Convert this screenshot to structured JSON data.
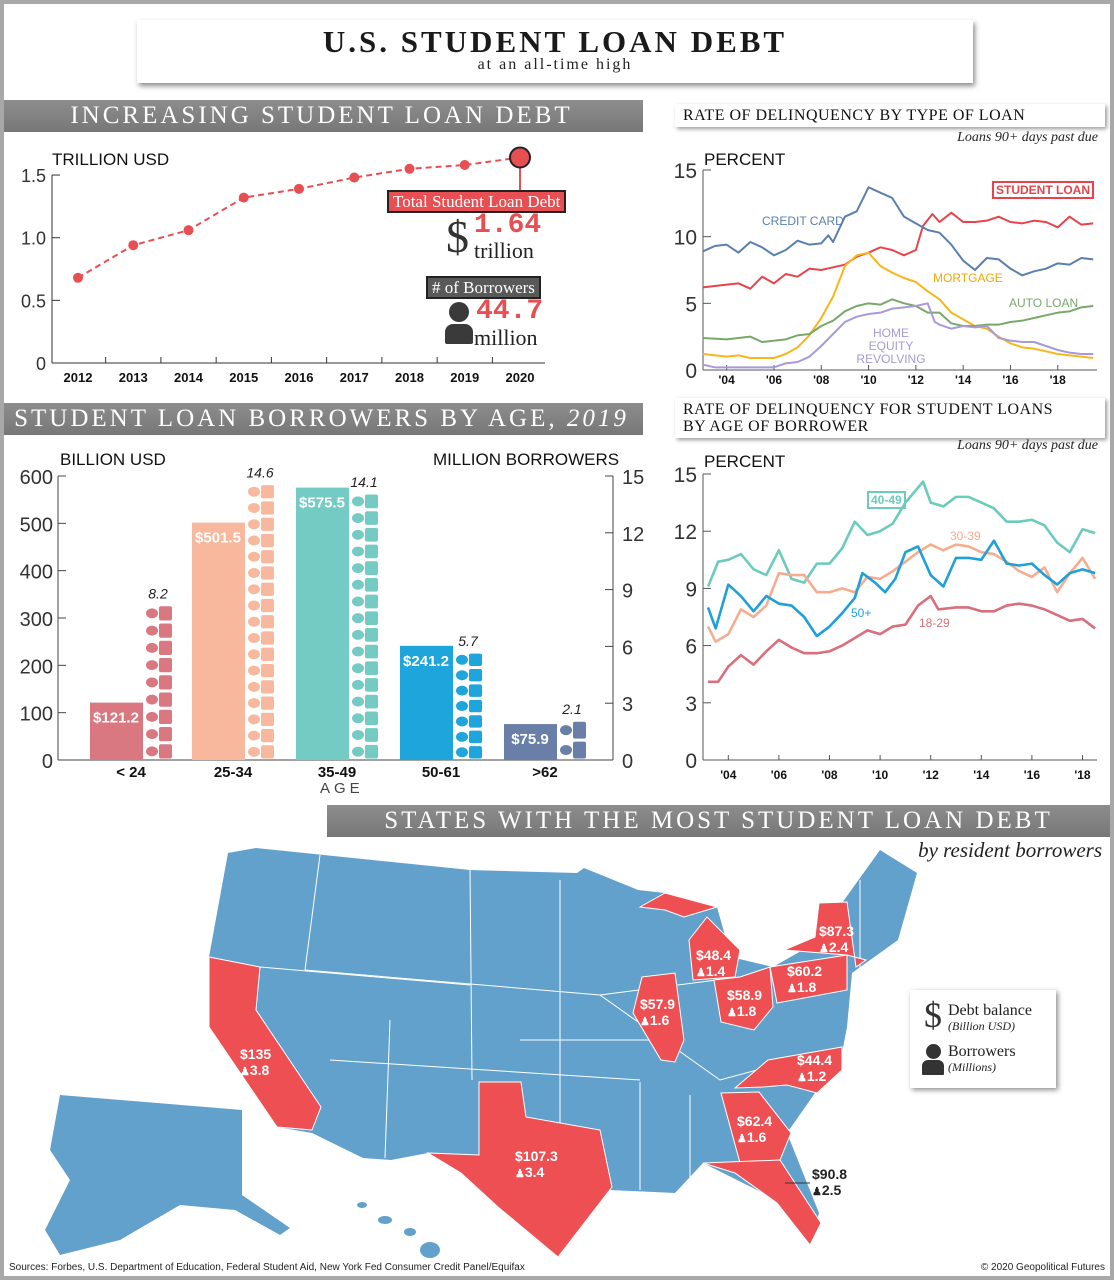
{
  "header": {
    "title": "U.S. STUDENT LOAN DEBT",
    "subtitle": "at an all-time high"
  },
  "sections": {
    "debt": "INCREASING STUDENT LOAN DEBT",
    "by_type": "RATE OF DELINQUENCY BY TYPE OF LOAN",
    "by_type_note": "Loans 90+ days past due",
    "age_title": "STUDENT LOAN BORROWERS BY AGE,",
    "age_year": "2019",
    "by_age_line1": "RATE OF DELINQUENCY FOR STUDENT LOANS",
    "by_age_line2": "BY AGE OF BORROWER",
    "by_age_note": "Loans 90+ days past due",
    "states": "STATES WITH THE MOST STUDENT LOAN DEBT",
    "states_note": "by resident borrowers"
  },
  "callouts": {
    "total_label": "Total Student Loan Debt",
    "dollar": "$",
    "total_value": "1.64",
    "total_unit": "trillion",
    "borrowers_label": "# of Borrowers",
    "borrowers_value": "44.7",
    "borrowers_unit": "million"
  },
  "colors": {
    "red": "#e84f52",
    "map_blue": "#62a1cc",
    "banner": "#808080"
  },
  "chart_data": [
    {
      "type": "line",
      "ylabel": "TRILLION USD",
      "ylim": [
        0,
        1.5
      ],
      "yticks": [
        "0",
        "0.5",
        "1.0",
        "1.5"
      ],
      "x": [
        "2012",
        "2013",
        "2014",
        "2015",
        "2016",
        "2017",
        "2018",
        "2019",
        "2020"
      ],
      "values": [
        0.68,
        0.94,
        1.06,
        1.32,
        1.39,
        1.48,
        1.55,
        1.58,
        1.64
      ],
      "color": "#e84f52",
      "style": "dashed with markers"
    },
    {
      "type": "line",
      "ylabel": "PERCENT",
      "ylim": [
        0,
        15
      ],
      "yticks": [
        "0",
        "5",
        "10",
        "15"
      ],
      "xlim": [
        2003,
        2019.6
      ],
      "xticks": [
        {
          "v": 2004,
          "l": "'04"
        },
        {
          "v": 2006,
          "l": "'06"
        },
        {
          "v": 2008,
          "l": "'08"
        },
        {
          "v": 2010,
          "l": "'10"
        },
        {
          "v": 2012,
          "l": "'12"
        },
        {
          "v": 2014,
          "l": "'14"
        },
        {
          "v": 2016,
          "l": "'16"
        },
        {
          "v": 2018,
          "l": "'18"
        }
      ],
      "series": [
        {
          "name": "STUDENT LOAN",
          "color": "#e8434a",
          "x": [
            2003,
            2003.5,
            2004,
            2004.5,
            2005,
            2005.5,
            2006,
            2006.5,
            2007,
            2007.5,
            2008,
            2008.5,
            2009,
            2009.5,
            2010,
            2010.5,
            2011,
            2011.5,
            2012,
            2012.3,
            2012.7,
            2013,
            2013.5,
            2014,
            2014.5,
            2015,
            2015.5,
            2016,
            2016.5,
            2017,
            2017.5,
            2018,
            2018.5,
            2019,
            2019.5
          ],
          "y": [
            6.2,
            6.3,
            6.4,
            6.5,
            6.1,
            7.0,
            6.5,
            7.2,
            7.0,
            7.6,
            7.5,
            7.7,
            7.9,
            8.5,
            8.8,
            9.2,
            9.0,
            8.6,
            9.0,
            10.8,
            11.7,
            11.1,
            11.8,
            11.1,
            11.1,
            11.2,
            11.5,
            11.1,
            11.0,
            11.2,
            11.1,
            10.7,
            11.5,
            10.9,
            11.0
          ]
        },
        {
          "name": "CREDIT CARD",
          "color": "#5a7fb0",
          "x": [
            2003,
            2003.5,
            2004,
            2004.5,
            2005,
            2005.5,
            2006,
            2006.5,
            2007,
            2007.5,
            2008,
            2008.3,
            2008.5,
            2009,
            2009.5,
            2010,
            2010.5,
            2011,
            2011.5,
            2012,
            2012.5,
            2013,
            2013.5,
            2014,
            2014.5,
            2015,
            2015.5,
            2016,
            2016.5,
            2017,
            2017.5,
            2018,
            2018.5,
            2019,
            2019.5
          ],
          "y": [
            8.9,
            9.3,
            9.4,
            8.8,
            9.6,
            9.2,
            8.6,
            9.0,
            9.7,
            9.4,
            9.5,
            10.1,
            9.6,
            11.5,
            11.9,
            13.7,
            13.3,
            12.9,
            11.5,
            11.0,
            10.5,
            10.3,
            9.4,
            8.2,
            7.5,
            8.4,
            8.3,
            7.6,
            7.1,
            7.4,
            7.6,
            8.0,
            7.9,
            8.4,
            8.3
          ]
        },
        {
          "name": "MORTGAGE",
          "color": "#f7b718",
          "x": [
            2003,
            2004,
            2004.5,
            2005,
            2006,
            2006.5,
            2007,
            2007.5,
            2008,
            2008.5,
            2009,
            2009.5,
            2010,
            2010.5,
            2011,
            2011.5,
            2012,
            2012.5,
            2013,
            2013.5,
            2014,
            2014.5,
            2015,
            2015.5,
            2016,
            2016.5,
            2017,
            2017.5,
            2018,
            2018.5,
            2019,
            2019.5
          ],
          "y": [
            1.2,
            1.0,
            1.1,
            0.9,
            0.9,
            1.2,
            1.7,
            2.6,
            3.9,
            5.5,
            7.8,
            8.6,
            8.8,
            7.8,
            7.3,
            6.9,
            6.6,
            5.9,
            5.3,
            4.3,
            3.8,
            3.3,
            3.1,
            2.5,
            2.0,
            1.7,
            1.6,
            1.4,
            1.2,
            1.1,
            1.0,
            0.9
          ]
        },
        {
          "name": "AUTO LOAN",
          "color": "#79a86a",
          "x": [
            2003,
            2004,
            2005,
            2005.5,
            2006.5,
            2007,
            2007.5,
            2008,
            2008.5,
            2009,
            2009.5,
            2010,
            2010.5,
            2011,
            2011.5,
            2012,
            2012.5,
            2013,
            2013.5,
            2014,
            2014.5,
            2015,
            2015.5,
            2016,
            2016.5,
            2017,
            2017.5,
            2018,
            2018.5,
            2019,
            2019.5
          ],
          "y": [
            2.4,
            2.3,
            2.5,
            2.1,
            2.3,
            2.6,
            2.7,
            3.3,
            3.7,
            4.4,
            4.8,
            5.0,
            4.9,
            5.3,
            5.0,
            4.8,
            4.3,
            4.3,
            3.5,
            3.3,
            3.3,
            3.4,
            3.4,
            3.6,
            3.7,
            3.9,
            4.1,
            4.3,
            4.4,
            4.7,
            4.8
          ]
        },
        {
          "name": "HOME EQUITY REVOLVING",
          "color": "#a79ad8",
          "x": [
            2003,
            2003.5,
            2004,
            2005,
            2006,
            2006.5,
            2007,
            2007.5,
            2008,
            2008.5,
            2009,
            2009.5,
            2010,
            2010.5,
            2011,
            2011.5,
            2012,
            2012.5,
            2012.8,
            2013,
            2013.5,
            2014,
            2014.5,
            2015,
            2015.5,
            2016,
            2016.5,
            2017,
            2017.5,
            2018,
            2018.5,
            2019,
            2019.5
          ],
          "y": [
            0.4,
            0.2,
            0.2,
            0.2,
            0.2,
            0.5,
            0.6,
            1.0,
            1.8,
            2.7,
            3.6,
            4.0,
            4.2,
            4.3,
            4.6,
            4.7,
            4.8,
            5.0,
            3.6,
            3.4,
            3.1,
            3.3,
            3.2,
            3.3,
            2.4,
            2.2,
            2.1,
            2.1,
            1.8,
            1.5,
            1.3,
            1.2,
            1.2
          ]
        }
      ]
    },
    {
      "type": "bar",
      "xlabel": "AGE",
      "ylabel": "BILLION USD",
      "y2label": "MILLION BORROWERS",
      "ylim": [
        0,
        600
      ],
      "y2lim": [
        0,
        15
      ],
      "yticks": [
        "0",
        "100",
        "200",
        "300",
        "400",
        "500",
        "600"
      ],
      "y2ticks": [
        "0",
        "3",
        "6",
        "9",
        "12",
        "15"
      ],
      "categories": [
        "< 24",
        "25-34",
        "35-49",
        "50-61",
        ">62"
      ],
      "debt_values": [
        121.2,
        501.5,
        575.5,
        241.2,
        75.9
      ],
      "debt_labels": [
        "$121.2",
        "$501.5",
        "$575.5",
        "$241.2",
        "$75.9"
      ],
      "borrower_values": [
        8.2,
        14.6,
        14.1,
        5.7,
        2.1
      ],
      "borrower_labels": [
        "8.2",
        "14.6",
        "14.1",
        "5.7",
        "2.1"
      ],
      "colors": [
        "#d97880",
        "#f7b89e",
        "#74cbc4",
        "#1ea5dc",
        "#6a7fa8"
      ]
    },
    {
      "type": "line",
      "ylabel": "PERCENT",
      "ylim": [
        0,
        15
      ],
      "yticks": [
        "0",
        "3",
        "6",
        "9",
        "12",
        "15"
      ],
      "xlim": [
        2003,
        2018.8
      ],
      "xticks": [
        {
          "v": 2004,
          "l": "'04"
        },
        {
          "v": 2006,
          "l": "'06"
        },
        {
          "v": 2008,
          "l": "'08"
        },
        {
          "v": 2010,
          "l": "'10"
        },
        {
          "v": 2012,
          "l": "'12"
        },
        {
          "v": 2014,
          "l": "'14"
        },
        {
          "v": 2016,
          "l": "'16"
        },
        {
          "v": 2018,
          "l": "'18"
        }
      ],
      "series": [
        {
          "name": "40-49",
          "color": "#6ccbbd",
          "x": [
            2003.2,
            2003.6,
            2004,
            2004.5,
            2005,
            2005.5,
            2006,
            2006.5,
            2007,
            2007.5,
            2008,
            2008.5,
            2009,
            2009.5,
            2010,
            2010.5,
            2011,
            2011.7,
            2012,
            2012.5,
            2013,
            2013.5,
            2014,
            2014.5,
            2015,
            2015.5,
            2016,
            2016.5,
            2017,
            2017.5,
            2018,
            2018.5
          ],
          "y": [
            9.1,
            10.4,
            10.5,
            10.8,
            10.0,
            9.7,
            11.0,
            9.5,
            9.3,
            10.3,
            10.3,
            11.1,
            12.5,
            11.8,
            12.0,
            12.4,
            13.5,
            14.6,
            13.5,
            13.3,
            13.8,
            13.8,
            13.5,
            13.2,
            12.5,
            12.5,
            12.6,
            12.3,
            11.4,
            10.9,
            12.1,
            11.9
          ]
        },
        {
          "name": "30-39",
          "color": "#f5ad90",
          "x": [
            2003.2,
            2003.5,
            2004,
            2004.5,
            2005,
            2005.5,
            2006,
            2006.5,
            2007,
            2007.5,
            2008,
            2008.5,
            2009,
            2009.5,
            2010,
            2010.5,
            2011,
            2011.5,
            2012,
            2012.5,
            2013,
            2013.5,
            2014,
            2014.5,
            2015,
            2015.5,
            2016,
            2016.5,
            2017,
            2017.5,
            2018,
            2018.5
          ],
          "y": [
            7.0,
            6.2,
            6.6,
            7.9,
            7.5,
            8.1,
            9.8,
            9.7,
            9.7,
            8.8,
            8.8,
            9.0,
            8.8,
            9.6,
            9.5,
            9.9,
            10.4,
            10.9,
            11.3,
            11.0,
            11.3,
            11.2,
            10.9,
            10.8,
            10.4,
            9.9,
            9.6,
            10.1,
            8.8,
            9.8,
            10.6,
            9.5
          ]
        },
        {
          "name": "50+",
          "color": "#1fa0d8",
          "x": [
            2003.2,
            2003.5,
            2004,
            2004.5,
            2005,
            2005.5,
            2006,
            2006.5,
            2007,
            2007.5,
            2008,
            2008.5,
            2009,
            2009.3,
            2009.8,
            2010.2,
            2010.6,
            2011,
            2011.5,
            2012,
            2012.5,
            2013,
            2013.5,
            2014,
            2014.5,
            2015,
            2015.5,
            2016,
            2016.5,
            2017,
            2017.5,
            2018,
            2018.5
          ],
          "y": [
            8.0,
            6.9,
            9.2,
            8.6,
            7.8,
            8.6,
            8.2,
            8.1,
            7.5,
            6.5,
            7.0,
            7.7,
            8.5,
            9.8,
            9.3,
            8.8,
            9.5,
            10.9,
            11.2,
            9.7,
            9.1,
            10.6,
            10.6,
            10.5,
            11.5,
            10.3,
            10.2,
            10.3,
            9.7,
            9.2,
            9.8,
            10.0,
            9.8
          ]
        },
        {
          "name": "18-29",
          "color": "#d86f7b",
          "x": [
            2003.2,
            2003.6,
            2004,
            2004.5,
            2005,
            2005.5,
            2006,
            2006.5,
            2007,
            2007.5,
            2008,
            2008.5,
            2009,
            2009.5,
            2010,
            2010.5,
            2011,
            2011.5,
            2012,
            2012.3,
            2013,
            2013.5,
            2014,
            2014.5,
            2015,
            2015.5,
            2016,
            2016.5,
            2017,
            2017.5,
            2018,
            2018.5
          ],
          "y": [
            4.1,
            4.1,
            4.9,
            5.5,
            5.0,
            5.7,
            6.3,
            5.9,
            5.6,
            5.6,
            5.7,
            6.0,
            6.4,
            6.8,
            6.6,
            7.0,
            7.1,
            8.1,
            8.6,
            7.9,
            8.0,
            8.0,
            7.8,
            7.8,
            8.1,
            8.2,
            8.1,
            7.9,
            7.6,
            7.3,
            7.4,
            6.9
          ]
        }
      ]
    }
  ],
  "states": [
    {
      "name": "California",
      "debt": "$135",
      "borrowers": "3.8"
    },
    {
      "name": "Texas",
      "debt": "$107.3",
      "borrowers": "3.4"
    },
    {
      "name": "Illinois",
      "debt": "$57.9",
      "borrowers": "1.6"
    },
    {
      "name": "Michigan",
      "debt": "$48.4",
      "borrowers": "1.4"
    },
    {
      "name": "Ohio",
      "debt": "$58.9",
      "borrowers": "1.8"
    },
    {
      "name": "Pennsylvania",
      "debt": "$60.2",
      "borrowers": "1.8"
    },
    {
      "name": "New York",
      "debt": "$87.3",
      "borrowers": "2.4"
    },
    {
      "name": "North Carolina",
      "debt": "$44.4",
      "borrowers": "1.2"
    },
    {
      "name": "Georgia",
      "debt": "$62.4",
      "borrowers": "1.6"
    },
    {
      "name": "Florida",
      "debt": "$90.8",
      "borrowers": "2.5"
    }
  ],
  "legend": {
    "debt_label": "Debt balance",
    "debt_unit": "(Billion USD)",
    "borrowers_label": "Borrowers",
    "borrowers_unit": "(Millions)",
    "dollar_icon": "dollar-sign-icon",
    "person_icon": "person-icon"
  },
  "footer": {
    "sources": "Sources: Forbes, U.S. Department of Education, Federal Student Aid, New York Fed Consumer Credit Panel/Equifax",
    "copyright": "© 2020 Geopolitical Futures"
  }
}
